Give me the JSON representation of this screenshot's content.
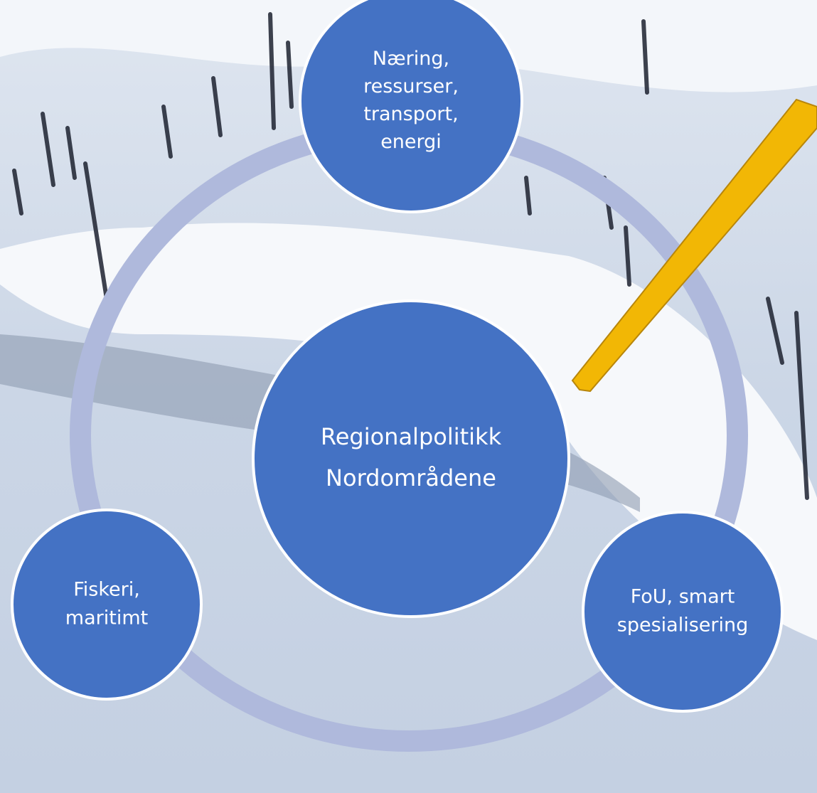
{
  "center": {
    "lines": [
      "Regionalpolitikk",
      "Nordområdene"
    ]
  },
  "nodes": [
    {
      "lines": [
        "Næring,",
        "ressurser,",
        "transport,",
        "energi"
      ]
    },
    {
      "lines": [
        "Fiskeri,",
        "maritimt"
      ]
    },
    {
      "lines": [
        "FoU, smart",
        "spesialisering"
      ]
    }
  ]
}
